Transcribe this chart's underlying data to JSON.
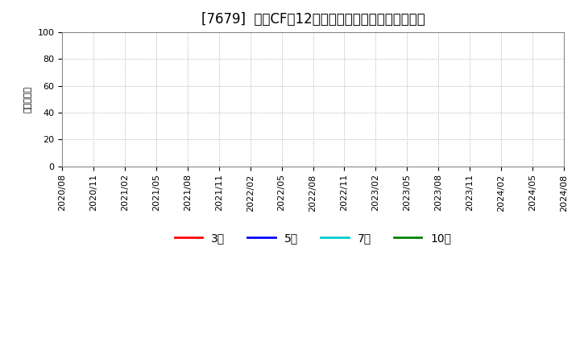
{
  "title": "[7679]  投資CFの12か月移動合計の標準偏差の推移",
  "ylabel": "（百万円）",
  "ylim": [
    0,
    100
  ],
  "yticks": [
    0,
    20,
    40,
    60,
    80,
    100
  ],
  "x_tick_labels": [
    "2020/08",
    "2020/11",
    "2021/02",
    "2021/05",
    "2021/08",
    "2021/11",
    "2022/02",
    "2022/05",
    "2022/08",
    "2022/11",
    "2023/02",
    "2023/05",
    "2023/08",
    "2023/11",
    "2024/02",
    "2024/05",
    "2024/08"
  ],
  "legend_entries": [
    {
      "label": "3年",
      "color": "#ff0000"
    },
    {
      "label": "5年",
      "color": "#0000ff"
    },
    {
      "label": "7年",
      "color": "#00cccc"
    },
    {
      "label": "10年",
      "color": "#008000"
    }
  ],
  "background_color": "#ffffff",
  "plot_bg_color": "#ffffff",
  "grid_color": "#aaaaaa",
  "title_fontsize": 12,
  "axis_fontsize": 8,
  "legend_fontsize": 10
}
